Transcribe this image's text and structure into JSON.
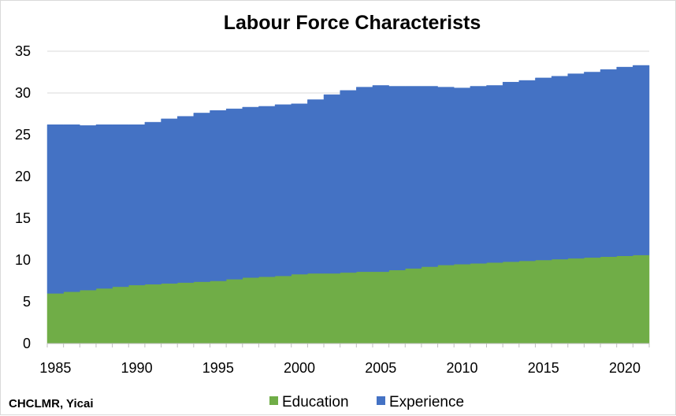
{
  "chart_data": {
    "type": "area",
    "stacked": true,
    "title": "Labour Force Characterists",
    "xlabel": "",
    "ylabel": "",
    "x": [
      1985,
      1986,
      1987,
      1988,
      1989,
      1990,
      1991,
      1992,
      1993,
      1994,
      1995,
      1996,
      1997,
      1998,
      1999,
      2000,
      2001,
      2002,
      2003,
      2004,
      2005,
      2006,
      2007,
      2008,
      2009,
      2010,
      2011,
      2012,
      2013,
      2014,
      2015,
      2016,
      2017,
      2018,
      2019,
      2020,
      2021
    ],
    "xlim": [
      1984.5,
      2021.5
    ],
    "xticks": [
      "1985",
      "1990",
      "1995",
      "2000",
      "2005",
      "2010",
      "2015",
      "2020"
    ],
    "ylim": [
      0,
      35
    ],
    "yticks": [
      "0",
      "5",
      "10",
      "15",
      "20",
      "25",
      "30",
      "35"
    ],
    "grid": "horizontal",
    "legend_position": "bottom",
    "series": [
      {
        "name": "Education",
        "color": "#70ad47",
        "values": [
          6.0,
          6.2,
          6.4,
          6.6,
          6.8,
          7.0,
          7.1,
          7.2,
          7.3,
          7.4,
          7.5,
          7.7,
          7.9,
          8.0,
          8.1,
          8.3,
          8.4,
          8.4,
          8.5,
          8.6,
          8.6,
          8.8,
          9.0,
          9.2,
          9.4,
          9.5,
          9.6,
          9.7,
          9.8,
          9.9,
          10.0,
          10.1,
          10.2,
          10.3,
          10.4,
          10.5,
          10.6
        ]
      },
      {
        "name": "Experience",
        "color": "#4472c4",
        "values": [
          20.2,
          20.0,
          19.7,
          19.6,
          19.4,
          19.2,
          19.4,
          19.7,
          19.9,
          20.2,
          20.4,
          20.4,
          20.4,
          20.4,
          20.5,
          20.4,
          20.8,
          21.4,
          21.8,
          22.1,
          22.3,
          22.0,
          21.8,
          21.6,
          21.3,
          21.1,
          21.2,
          21.2,
          21.5,
          21.6,
          21.8,
          21.9,
          22.1,
          22.2,
          22.4,
          22.6,
          22.7
        ]
      }
    ]
  },
  "source_note": "CHCLMR, Yicai"
}
